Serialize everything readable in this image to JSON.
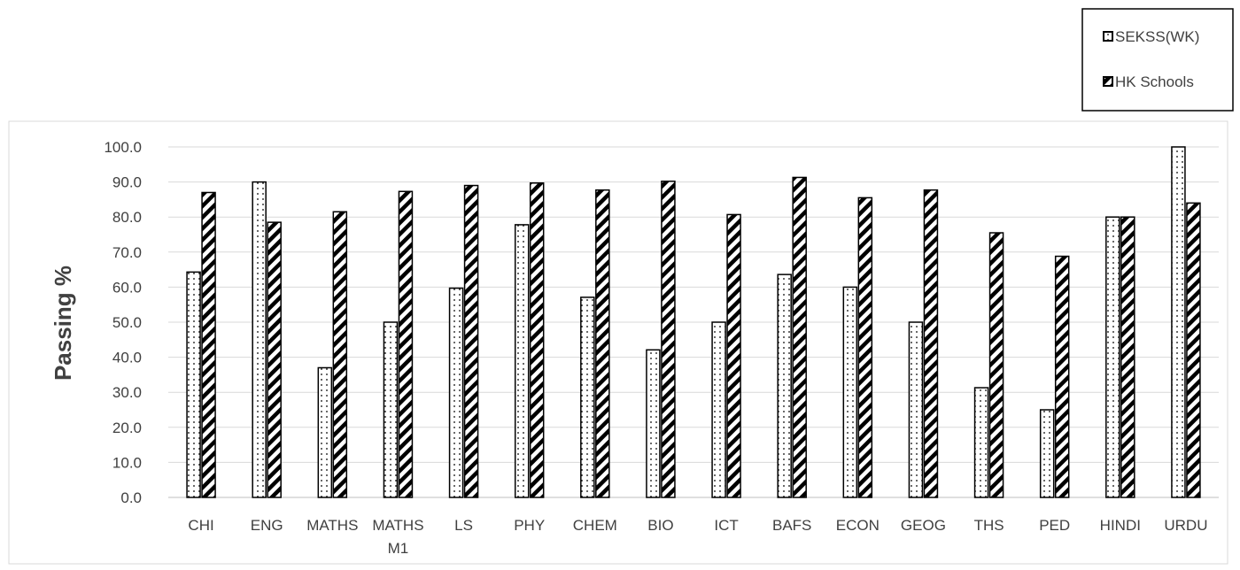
{
  "chart_data": {
    "type": "bar",
    "title": "",
    "xlabel": "",
    "ylabel": "Passing %",
    "ylim": [
      0,
      100
    ],
    "yticks": [
      "0.0",
      "10.0",
      "20.0",
      "30.0",
      "40.0",
      "50.0",
      "60.0",
      "70.0",
      "80.0",
      "90.0",
      "100.0"
    ],
    "grid": true,
    "legend_position": "top-right",
    "categories": [
      [
        "CHI"
      ],
      [
        "ENG"
      ],
      [
        "MATHS"
      ],
      [
        "MATHS",
        "M1"
      ],
      [
        "LS"
      ],
      [
        "PHY"
      ],
      [
        "CHEM"
      ],
      [
        "BIO"
      ],
      [
        "ICT"
      ],
      [
        "BAFS"
      ],
      [
        "ECON"
      ],
      [
        "GEOG"
      ],
      [
        "THS"
      ],
      [
        "PED"
      ],
      [
        "HINDI"
      ],
      [
        "URDU"
      ]
    ],
    "series": [
      {
        "name": "SEKSS(WK)",
        "pattern": "dots",
        "values": [
          64.3,
          90.0,
          37.0,
          50.0,
          59.7,
          77.8,
          57.1,
          42.1,
          50.0,
          63.6,
          60.0,
          50.0,
          31.3,
          25.0,
          80.0,
          100.0
        ]
      },
      {
        "name": "HK Schools",
        "pattern": "diagonal-stripes",
        "values": [
          87.0,
          78.5,
          81.5,
          87.3,
          89.0,
          89.7,
          87.7,
          90.2,
          80.7,
          91.3,
          85.5,
          87.7,
          75.5,
          68.8,
          80.0,
          84.0
        ]
      }
    ]
  }
}
